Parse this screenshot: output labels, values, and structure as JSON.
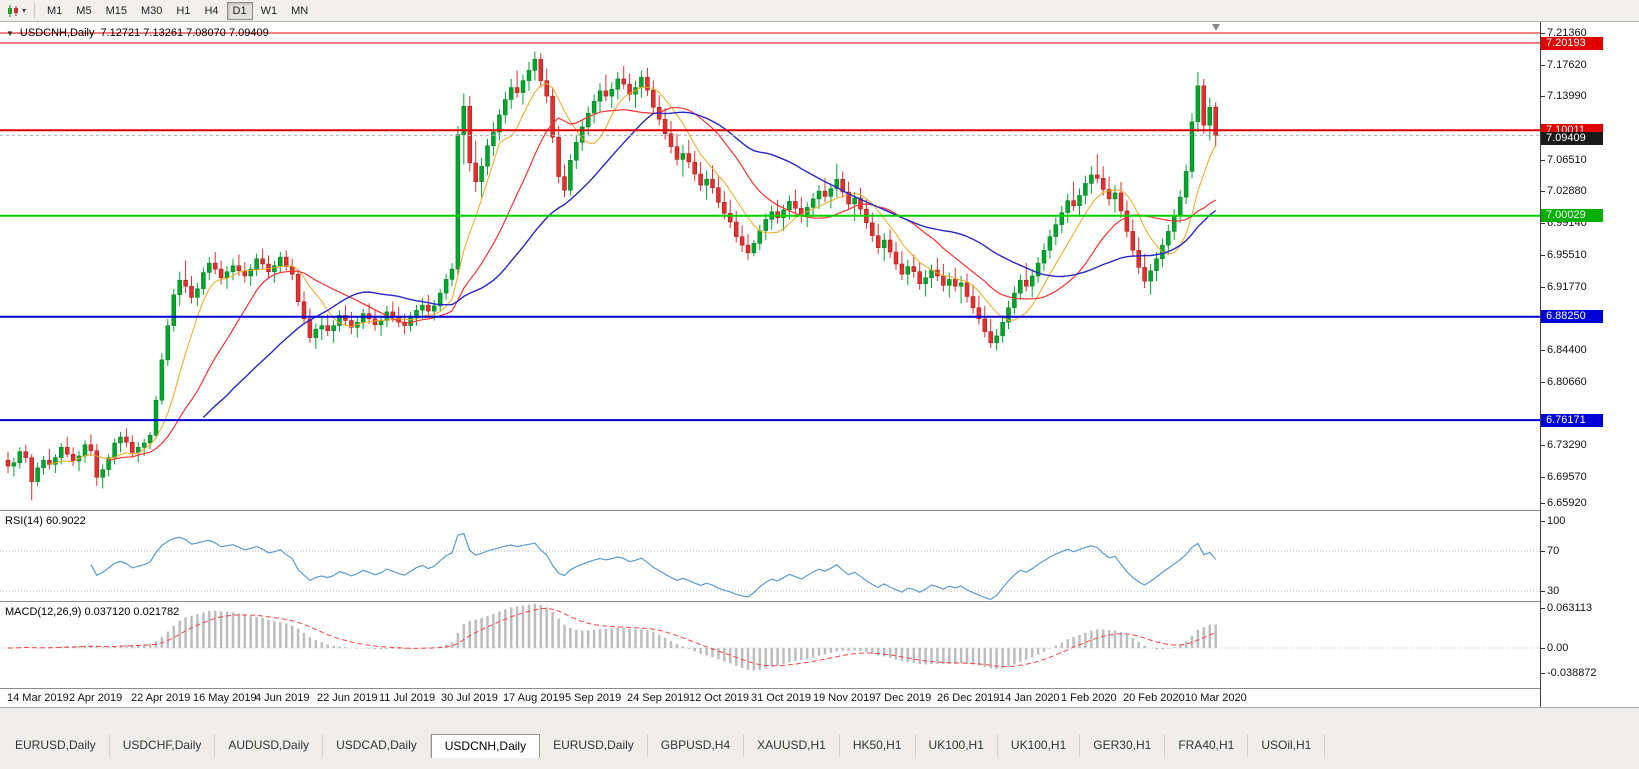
{
  "colors": {
    "bull": "#00a62c",
    "bull_border": "#007a1e",
    "bear": "#e03030",
    "bear_border": "#a31812",
    "ma_fast": "#efa820",
    "ma_mid": "#ff3232",
    "ma_slow": "#2828c8",
    "level_red": "#e00000",
    "level_green": "#00d200",
    "level_blue": "#0000d8",
    "rsi_line": "#5b9bd5",
    "macd_hist": "#bdbdbd",
    "macd_signal": "#ff4040",
    "bid_flag": "#1a1a1a"
  },
  "toolbar": {
    "timeframes": [
      "M1",
      "M5",
      "M15",
      "M30",
      "H1",
      "H4",
      "D1",
      "W1",
      "MN"
    ],
    "active_timeframe": "D1"
  },
  "chart_header": {
    "collapse_glyph": "▼",
    "title": "USDCNH,Daily",
    "ohlc_text": "7.12721 7.13261 7.08070 7.09409"
  },
  "price_scale": {
    "gridline_labels": [
      "7.21360",
      "7.17620",
      "7.13990",
      "7.06510",
      "7.02880",
      "6.99140",
      "6.95510",
      "6.91770",
      "6.84400",
      "6.80660",
      "6.73290",
      "6.69570",
      "6.65920"
    ],
    "flags": [
      {
        "text": "7.20193",
        "value": 7.20193,
        "color": "#e00000"
      },
      {
        "text": "7.10011",
        "value": 7.10011,
        "color": "#e00000"
      },
      {
        "text": "7.09409",
        "value": 7.09409,
        "color": "#1a1a1a"
      },
      {
        "text": "7.00029",
        "value": 7.00029,
        "color": "#00b000"
      },
      {
        "text": "6.88250",
        "value": 6.8825,
        "color": "#0000d8"
      },
      {
        "text": "6.76171",
        "value": 6.76171,
        "color": "#0000d8"
      }
    ]
  },
  "levels": [
    {
      "value": 7.2136,
      "color": "#e00000",
      "width": 1,
      "style": "solid"
    },
    {
      "value": 7.20193,
      "color": "#e00000",
      "width": 1,
      "style": "solid"
    },
    {
      "value": 7.10011,
      "color": "#e00000",
      "width": 2,
      "style": "solid"
    },
    {
      "value": 7.09409,
      "color": "#b0b0b0",
      "width": 1,
      "style": "dashed"
    },
    {
      "value": 7.00029,
      "color": "#00d200",
      "width": 2,
      "style": "solid"
    },
    {
      "value": 6.8825,
      "color": "#0000d8",
      "width": 2,
      "style": "solid"
    },
    {
      "value": 6.76171,
      "color": "#0000d8",
      "width": 2,
      "style": "solid"
    }
  ],
  "rsi_panel": {
    "label": "RSI(14) 60.9022",
    "period": 14,
    "value": 60.9022,
    "scale_labels": [
      "100",
      "70",
      "30"
    ],
    "scale_values": [
      100,
      70,
      30
    ],
    "guide_levels": [
      70,
      30
    ]
  },
  "macd_panel": {
    "label": "MACD(12,26,9) 0.037120 0.021782",
    "fast": 12,
    "slow": 26,
    "signal": 9,
    "macd_value": 0.03712,
    "signal_value": 0.021782,
    "scale_labels": [
      "0.063113",
      "0.00",
      "-0.038872"
    ],
    "scale_values": [
      0.063113,
      0,
      -0.038872
    ]
  },
  "bottom_tabs": [
    "EURUSD,Daily",
    "USDCHF,Daily",
    "AUDUSD,Daily",
    "USDCAD,Daily",
    "USDCNH,Daily",
    "EURUSD,Daily",
    "GBPUSD,H4",
    "XAUUSD,H1",
    "HK50,H1",
    "UK100,H1",
    "UK100,H1",
    "GER30,H1",
    "FRA40,H1",
    "USOil,H1"
  ],
  "active_tab_index": 4,
  "chart_data": {
    "type": "candlestick",
    "title": "USDCNH Daily",
    "symbol": "USDCNH",
    "timeframe": "Daily",
    "current_bar": {
      "open": 7.12721,
      "high": 7.13261,
      "low": 7.0807,
      "close": 7.09409
    },
    "ylim": [
      6.6592,
      7.2136
    ],
    "x_labels": [
      "14 Mar 2019",
      "2 Apr 2019",
      "22 Apr 2019",
      "16 May 2019",
      "4 Jun 2019",
      "22 Jun 2019",
      "11 Jul 2019",
      "30 Jul 2019",
      "17 Aug 2019",
      "5 Sep 2019",
      "24 Sep 2019",
      "12 Oct 2019",
      "31 Oct 2019",
      "19 Nov 2019",
      "7 Dec 2019",
      "26 Dec 2019",
      "14 Jan 2020",
      "1 Feb 2020",
      "20 Feb 2020",
      "10 Mar 2020"
    ],
    "moving_averages": [
      {
        "name": "fast-ma",
        "period": 8,
        "color_key": "ma_fast",
        "width": 1
      },
      {
        "name": "mid-ma",
        "period": 18,
        "color_key": "ma_mid",
        "width": 1.2
      },
      {
        "name": "slow-ma",
        "period": 34,
        "color_key": "ma_slow",
        "width": 1.4
      }
    ],
    "candles": [
      [
        6.715,
        6.725,
        6.7,
        6.708
      ],
      [
        6.708,
        6.718,
        6.696,
        6.712
      ],
      [
        6.712,
        6.73,
        6.705,
        6.725
      ],
      [
        6.725,
        6.733,
        6.712,
        6.718
      ],
      [
        6.718,
        6.722,
        6.668,
        6.69
      ],
      [
        6.69,
        6.712,
        6.685,
        6.706
      ],
      [
        6.706,
        6.72,
        6.698,
        6.715
      ],
      [
        6.715,
        6.728,
        6.704,
        6.71
      ],
      [
        6.71,
        6.722,
        6.7,
        6.718
      ],
      [
        6.718,
        6.735,
        6.71,
        6.73
      ],
      [
        6.73,
        6.742,
        6.718,
        6.722
      ],
      [
        6.722,
        6.73,
        6.708,
        6.714
      ],
      [
        6.714,
        6.726,
        6.702,
        6.72
      ],
      [
        6.72,
        6.738,
        6.712,
        6.733
      ],
      [
        6.733,
        6.745,
        6.72,
        6.726
      ],
      [
        6.726,
        6.734,
        6.685,
        6.695
      ],
      [
        6.695,
        6.71,
        6.682,
        6.704
      ],
      [
        6.704,
        6.722,
        6.696,
        6.718
      ],
      [
        6.718,
        6.74,
        6.71,
        6.735
      ],
      [
        6.735,
        6.748,
        6.724,
        6.742
      ],
      [
        6.742,
        6.752,
        6.73,
        6.736
      ],
      [
        6.736,
        6.744,
        6.718,
        6.724
      ],
      [
        6.724,
        6.736,
        6.712,
        6.73
      ],
      [
        6.73,
        6.74,
        6.72,
        6.735
      ],
      [
        6.735,
        6.748,
        6.728,
        6.744
      ],
      [
        6.744,
        6.79,
        6.74,
        6.785
      ],
      [
        6.785,
        6.84,
        6.78,
        6.832
      ],
      [
        6.832,
        6.88,
        6.825,
        6.872
      ],
      [
        6.872,
        6.915,
        6.865,
        6.908
      ],
      [
        6.908,
        6.935,
        6.895,
        6.925
      ],
      [
        6.925,
        6.948,
        6.91,
        6.918
      ],
      [
        6.918,
        6.93,
        6.898,
        6.905
      ],
      [
        6.905,
        6.922,
        6.895,
        6.915
      ],
      [
        6.915,
        6.94,
        6.908,
        6.934
      ],
      [
        6.934,
        6.952,
        6.925,
        6.945
      ],
      [
        6.945,
        6.958,
        6.932,
        6.938
      ],
      [
        6.938,
        6.948,
        6.92,
        6.928
      ],
      [
        6.928,
        6.942,
        6.915,
        6.935
      ],
      [
        6.935,
        6.95,
        6.925,
        6.942
      ],
      [
        6.942,
        6.955,
        6.93,
        6.936
      ],
      [
        6.936,
        6.946,
        6.922,
        6.93
      ],
      [
        6.93,
        6.944,
        6.918,
        6.938
      ],
      [
        6.938,
        6.956,
        6.93,
        6.95
      ],
      [
        6.95,
        6.962,
        6.938,
        6.944
      ],
      [
        6.944,
        6.954,
        6.928,
        6.935
      ],
      [
        6.935,
        6.948,
        6.922,
        6.942
      ],
      [
        6.942,
        6.958,
        6.934,
        6.952
      ],
      [
        6.952,
        6.96,
        6.936,
        6.941
      ],
      [
        6.941,
        6.95,
        6.925,
        6.932
      ],
      [
        6.932,
        6.938,
        6.895,
        6.9
      ],
      [
        6.9,
        6.912,
        6.875,
        6.88
      ],
      [
        6.88,
        6.892,
        6.852,
        6.858
      ],
      [
        6.858,
        6.875,
        6.845,
        6.868
      ],
      [
        6.868,
        6.882,
        6.855,
        6.872
      ],
      [
        6.872,
        6.885,
        6.86,
        6.866
      ],
      [
        6.866,
        6.878,
        6.852,
        6.872
      ],
      [
        6.872,
        6.89,
        6.865,
        6.884
      ],
      [
        6.884,
        6.896,
        6.872,
        6.878
      ],
      [
        6.878,
        6.888,
        6.862,
        6.87
      ],
      [
        6.87,
        6.882,
        6.858,
        6.876
      ],
      [
        6.876,
        6.892,
        6.868,
        6.886
      ],
      [
        6.886,
        6.898,
        6.874,
        6.88
      ],
      [
        6.88,
        6.89,
        6.866,
        6.873
      ],
      [
        6.873,
        6.884,
        6.86,
        6.878
      ],
      [
        6.878,
        6.895,
        6.87,
        6.888
      ],
      [
        6.888,
        6.9,
        6.876,
        6.882
      ],
      [
        6.882,
        6.894,
        6.87,
        6.876
      ],
      [
        6.876,
        6.886,
        6.862,
        6.872
      ],
      [
        6.872,
        6.888,
        6.865,
        6.881
      ],
      [
        6.881,
        6.896,
        6.872,
        6.89
      ],
      [
        6.89,
        6.904,
        6.88,
        6.896
      ],
      [
        6.896,
        6.908,
        6.884,
        6.889
      ],
      [
        6.889,
        6.902,
        6.878,
        6.895
      ],
      [
        6.895,
        6.915,
        6.888,
        6.91
      ],
      [
        6.91,
        6.932,
        6.902,
        6.926
      ],
      [
        6.926,
        6.945,
        6.918,
        6.938
      ],
      [
        6.938,
        7.105,
        6.93,
        7.095
      ],
      [
        7.095,
        7.143,
        7.06,
        7.128
      ],
      [
        7.128,
        7.14,
        7.052,
        7.062
      ],
      [
        7.062,
        7.088,
        7.028,
        7.04
      ],
      [
        7.04,
        7.068,
        7.022,
        7.058
      ],
      [
        7.058,
        7.09,
        7.048,
        7.082
      ],
      [
        7.082,
        7.11,
        7.07,
        7.098
      ],
      [
        7.098,
        7.125,
        7.088,
        7.118
      ],
      [
        7.118,
        7.145,
        7.108,
        7.136
      ],
      [
        7.136,
        7.16,
        7.125,
        7.15
      ],
      [
        7.15,
        7.17,
        7.138,
        7.144
      ],
      [
        7.144,
        7.165,
        7.13,
        7.158
      ],
      [
        7.158,
        7.18,
        7.146,
        7.17
      ],
      [
        7.17,
        7.192,
        7.158,
        7.183
      ],
      [
        7.183,
        7.19,
        7.15,
        7.158
      ],
      [
        7.158,
        7.172,
        7.132,
        7.14
      ],
      [
        7.14,
        7.15,
        7.085,
        7.092
      ],
      [
        7.092,
        7.105,
        7.038,
        7.046
      ],
      [
        7.046,
        7.06,
        7.022,
        7.03
      ],
      [
        7.03,
        7.072,
        7.024,
        7.065
      ],
      [
        7.065,
        7.095,
        7.055,
        7.086
      ],
      [
        7.086,
        7.112,
        7.076,
        7.104
      ],
      [
        7.104,
        7.128,
        7.094,
        7.12
      ],
      [
        7.12,
        7.142,
        7.108,
        7.134
      ],
      [
        7.134,
        7.155,
        7.122,
        7.146
      ],
      [
        7.146,
        7.165,
        7.134,
        7.14
      ],
      [
        7.14,
        7.156,
        7.126,
        7.148
      ],
      [
        7.148,
        7.168,
        7.136,
        7.16
      ],
      [
        7.16,
        7.175,
        7.148,
        7.154
      ],
      [
        7.154,
        7.166,
        7.134,
        7.142
      ],
      [
        7.142,
        7.158,
        7.126,
        7.15
      ],
      [
        7.15,
        7.17,
        7.138,
        7.162
      ],
      [
        7.162,
        7.173,
        7.14,
        7.147
      ],
      [
        7.147,
        7.158,
        7.12,
        7.127
      ],
      [
        7.127,
        7.141,
        7.106,
        7.113
      ],
      [
        7.113,
        7.126,
        7.089,
        7.096
      ],
      [
        7.096,
        7.111,
        7.073,
        7.081
      ],
      [
        7.081,
        7.096,
        7.059,
        7.066
      ],
      [
        7.066,
        7.083,
        7.046,
        7.073
      ],
      [
        7.073,
        7.089,
        7.056,
        7.063
      ],
      [
        7.063,
        7.076,
        7.041,
        7.049
      ],
      [
        7.049,
        7.063,
        7.029,
        7.036
      ],
      [
        7.036,
        7.053,
        7.019,
        7.043
      ],
      [
        7.043,
        7.059,
        7.026,
        7.033
      ],
      [
        7.033,
        7.046,
        7.009,
        7.016
      ],
      [
        7.016,
        7.029,
        6.996,
        7.003
      ],
      [
        7.003,
        7.019,
        6.986,
        6.993
      ],
      [
        6.993,
        7.006,
        6.969,
        6.976
      ],
      [
        6.976,
        6.989,
        6.958,
        6.966
      ],
      [
        6.966,
        6.979,
        6.949,
        6.957
      ],
      [
        6.957,
        6.972,
        6.953,
        6.968
      ],
      [
        6.968,
        6.99,
        6.96,
        6.983
      ],
      [
        6.983,
        7.003,
        6.972,
        6.996
      ],
      [
        6.996,
        7.012,
        6.984,
        7.005
      ],
      [
        7.005,
        7.019,
        6.991,
        6.998
      ],
      [
        6.998,
        7.013,
        6.983,
        7.007
      ],
      [
        7.007,
        7.024,
        6.996,
        7.017
      ],
      [
        7.017,
        7.031,
        7.002,
        7.009
      ],
      [
        7.009,
        7.022,
        6.992,
        7.0
      ],
      [
        7.0,
        7.016,
        6.987,
        7.01
      ],
      [
        7.01,
        7.027,
        6.999,
        7.02
      ],
      [
        7.02,
        7.036,
        7.008,
        7.029
      ],
      [
        7.029,
        7.044,
        7.016,
        7.023
      ],
      [
        7.023,
        7.038,
        7.009,
        7.032
      ],
      [
        7.032,
        7.061,
        7.022,
        7.043
      ],
      [
        7.043,
        7.052,
        7.021,
        7.028
      ],
      [
        7.028,
        7.04,
        7.007,
        7.014
      ],
      [
        7.014,
        7.028,
        6.994,
        7.021
      ],
      [
        7.021,
        7.033,
        7.001,
        7.008
      ],
      [
        7.008,
        7.019,
        6.985,
        6.992
      ],
      [
        6.992,
        7.004,
        6.97,
        6.977
      ],
      [
        6.977,
        6.991,
        6.956,
        6.963
      ],
      [
        6.963,
        6.98,
        6.947,
        6.972
      ],
      [
        6.972,
        6.984,
        6.951,
        6.958
      ],
      [
        6.958,
        6.97,
        6.937,
        6.944
      ],
      [
        6.944,
        6.959,
        6.925,
        6.932
      ],
      [
        6.932,
        6.949,
        6.919,
        6.941
      ],
      [
        6.941,
        6.955,
        6.928,
        6.935
      ],
      [
        6.935,
        6.946,
        6.914,
        6.921
      ],
      [
        6.921,
        6.937,
        6.906,
        6.928
      ],
      [
        6.928,
        6.943,
        6.916,
        6.937
      ],
      [
        6.937,
        6.951,
        6.924,
        6.93
      ],
      [
        6.93,
        6.944,
        6.912,
        6.919
      ],
      [
        6.919,
        6.934,
        6.905,
        6.926
      ],
      [
        6.926,
        6.94,
        6.912,
        6.918
      ],
      [
        6.918,
        6.93,
        6.898,
        6.922
      ],
      [
        6.922,
        6.933,
        6.899,
        6.906
      ],
      [
        6.906,
        6.92,
        6.886,
        6.893
      ],
      [
        6.893,
        6.907,
        6.873,
        6.88
      ],
      [
        6.88,
        6.895,
        6.858,
        6.865
      ],
      [
        6.865,
        6.88,
        6.846,
        6.852
      ],
      [
        6.852,
        6.868,
        6.843,
        6.86
      ],
      [
        6.86,
        6.884,
        6.852,
        6.876
      ],
      [
        6.876,
        6.901,
        6.868,
        6.893
      ],
      [
        6.893,
        6.918,
        6.885,
        6.91
      ],
      [
        6.91,
        6.932,
        6.902,
        6.925
      ],
      [
        6.925,
        6.945,
        6.912,
        6.918
      ],
      [
        6.918,
        6.938,
        6.905,
        6.93
      ],
      [
        6.93,
        6.952,
        6.922,
        6.945
      ],
      [
        6.945,
        6.968,
        6.936,
        6.96
      ],
      [
        6.96,
        6.984,
        6.95,
        6.976
      ],
      [
        6.976,
        6.998,
        6.966,
        6.99
      ],
      [
        6.99,
        7.012,
        6.98,
        7.004
      ],
      [
        7.004,
        7.026,
        6.992,
        7.018
      ],
      [
        7.018,
        7.04,
        7.006,
        7.012
      ],
      [
        7.012,
        7.032,
        6.999,
        7.024
      ],
      [
        7.024,
        7.047,
        7.014,
        7.038
      ],
      [
        7.038,
        7.058,
        7.026,
        7.048
      ],
      [
        7.048,
        7.072,
        7.038,
        7.044
      ],
      [
        7.044,
        7.058,
        7.024,
        7.031
      ],
      [
        7.031,
        7.046,
        7.012,
        7.02
      ],
      [
        7.02,
        7.036,
        7.004,
        7.027
      ],
      [
        7.027,
        7.04,
        6.998,
        7.006
      ],
      [
        7.006,
        7.018,
        6.975,
        6.982
      ],
      [
        6.982,
        6.996,
        6.952,
        6.96
      ],
      [
        6.96,
        6.975,
        6.932,
        6.94
      ],
      [
        6.94,
        6.956,
        6.916,
        6.924
      ],
      [
        6.924,
        6.944,
        6.908,
        6.936
      ],
      [
        6.936,
        6.958,
        6.924,
        6.95
      ],
      [
        6.95,
        6.974,
        6.94,
        6.966
      ],
      [
        6.966,
        6.99,
        6.956,
        6.982
      ],
      [
        6.982,
        7.008,
        6.972,
        7.0
      ],
      [
        7.0,
        7.03,
        6.992,
        7.022
      ],
      [
        7.022,
        7.06,
        7.014,
        7.052
      ],
      [
        7.052,
        7.12,
        7.044,
        7.11
      ],
      [
        7.11,
        7.168,
        7.098,
        7.152
      ],
      [
        7.152,
        7.16,
        7.096,
        7.106
      ],
      [
        7.106,
        7.138,
        7.088,
        7.127
      ],
      [
        7.12721,
        7.13261,
        7.0807,
        7.09409
      ]
    ]
  }
}
